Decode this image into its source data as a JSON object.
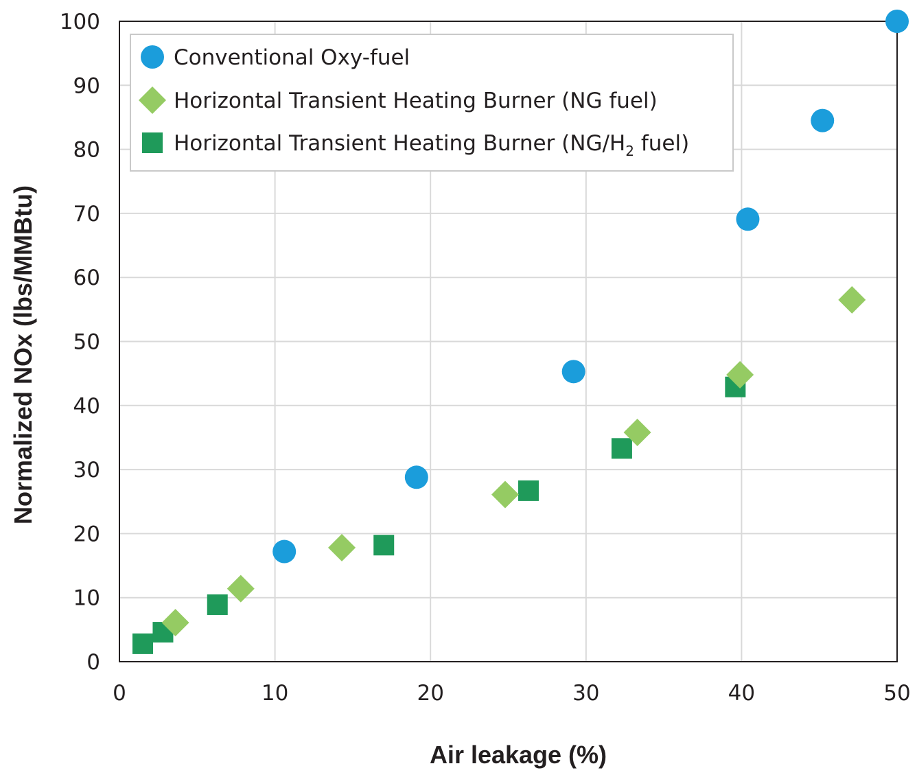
{
  "chart_data": {
    "type": "scatter",
    "xlabel": "Air leakage (%)",
    "ylabel": "Normalized NOx (lbs/MMBtu)",
    "xlim": [
      0,
      50
    ],
    "ylim": [
      0,
      100
    ],
    "xticks": [
      0,
      10,
      20,
      30,
      40,
      50
    ],
    "yticks": [
      0,
      10,
      20,
      30,
      40,
      50,
      60,
      70,
      80,
      90,
      100
    ],
    "grid": true,
    "legend_position": "top-left",
    "series": [
      {
        "name": "Conventional Oxy-fuel",
        "marker": "circle",
        "color": "#1b9ddb",
        "points": [
          [
            10.6,
            17.2
          ],
          [
            19.1,
            28.8
          ],
          [
            29.2,
            45.3
          ],
          [
            40.4,
            69.1
          ],
          [
            45.2,
            84.5
          ],
          [
            50.0,
            100.0
          ]
        ]
      },
      {
        "name": "Horizontal Transient Heating Burner (NG fuel)",
        "marker": "diamond",
        "color": "#95cb63",
        "points": [
          [
            3.6,
            6.1
          ],
          [
            7.8,
            11.4
          ],
          [
            14.3,
            17.8
          ],
          [
            24.8,
            26.1
          ],
          [
            33.3,
            35.8
          ],
          [
            39.9,
            44.8
          ],
          [
            47.1,
            56.5
          ]
        ]
      },
      {
        "name": "Horizontal Transient Heating Burner (NG/H",
        "name_subscript": "2",
        "name_suffix": " fuel)",
        "marker": "square",
        "color": "#1f9a5a",
        "points": [
          [
            1.5,
            2.8
          ],
          [
            2.8,
            4.6
          ],
          [
            6.3,
            8.9
          ],
          [
            17.0,
            18.2
          ],
          [
            26.3,
            26.7
          ],
          [
            32.3,
            33.3
          ],
          [
            39.6,
            42.9
          ]
        ]
      }
    ]
  }
}
